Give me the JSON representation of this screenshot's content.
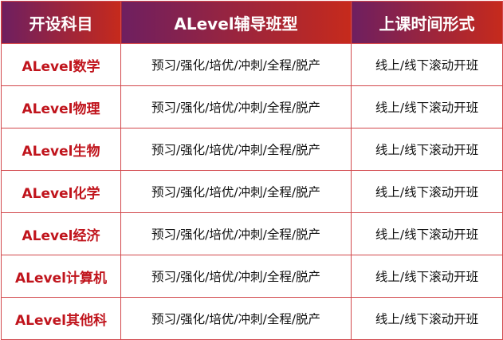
{
  "headers": [
    "开设科目",
    "ALevel辅导班型",
    "上课时间形式"
  ],
  "rows": [
    [
      "ALevel数学",
      "预习/强化/培优/冲刺/全程/脱产",
      "线上/线下滚动开班"
    ],
    [
      "ALevel物理",
      "预习/强化/培优/冲刺/全程/脱产",
      "线上/线下滚动开班"
    ],
    [
      "ALevel生物",
      "预习/强化/培优/冲刺/全程/脱产",
      "线上/线下滚动开班"
    ],
    [
      "ALevel化学",
      "预习/强化/培优/冲刺/全程/脱产",
      "线上/线下滚动开班"
    ],
    [
      "ALevel经济",
      "预习/强化/培优/冲刺/全程/脱产",
      "线上/线下滚动开班"
    ],
    [
      "ALevel计算机",
      "预习/强化/培优/冲刺/全程/脱产",
      "线上/线下滚动开班"
    ],
    [
      "ALevel其他科",
      "预习/强化/培优/冲刺/全程/脱产",
      "线上/线下滚动开班"
    ]
  ],
  "colors": {
    "header_start": "#6e1f60",
    "header_end": "#c62a1c",
    "subject_text": "#c0141c",
    "border": "#d2484c"
  }
}
